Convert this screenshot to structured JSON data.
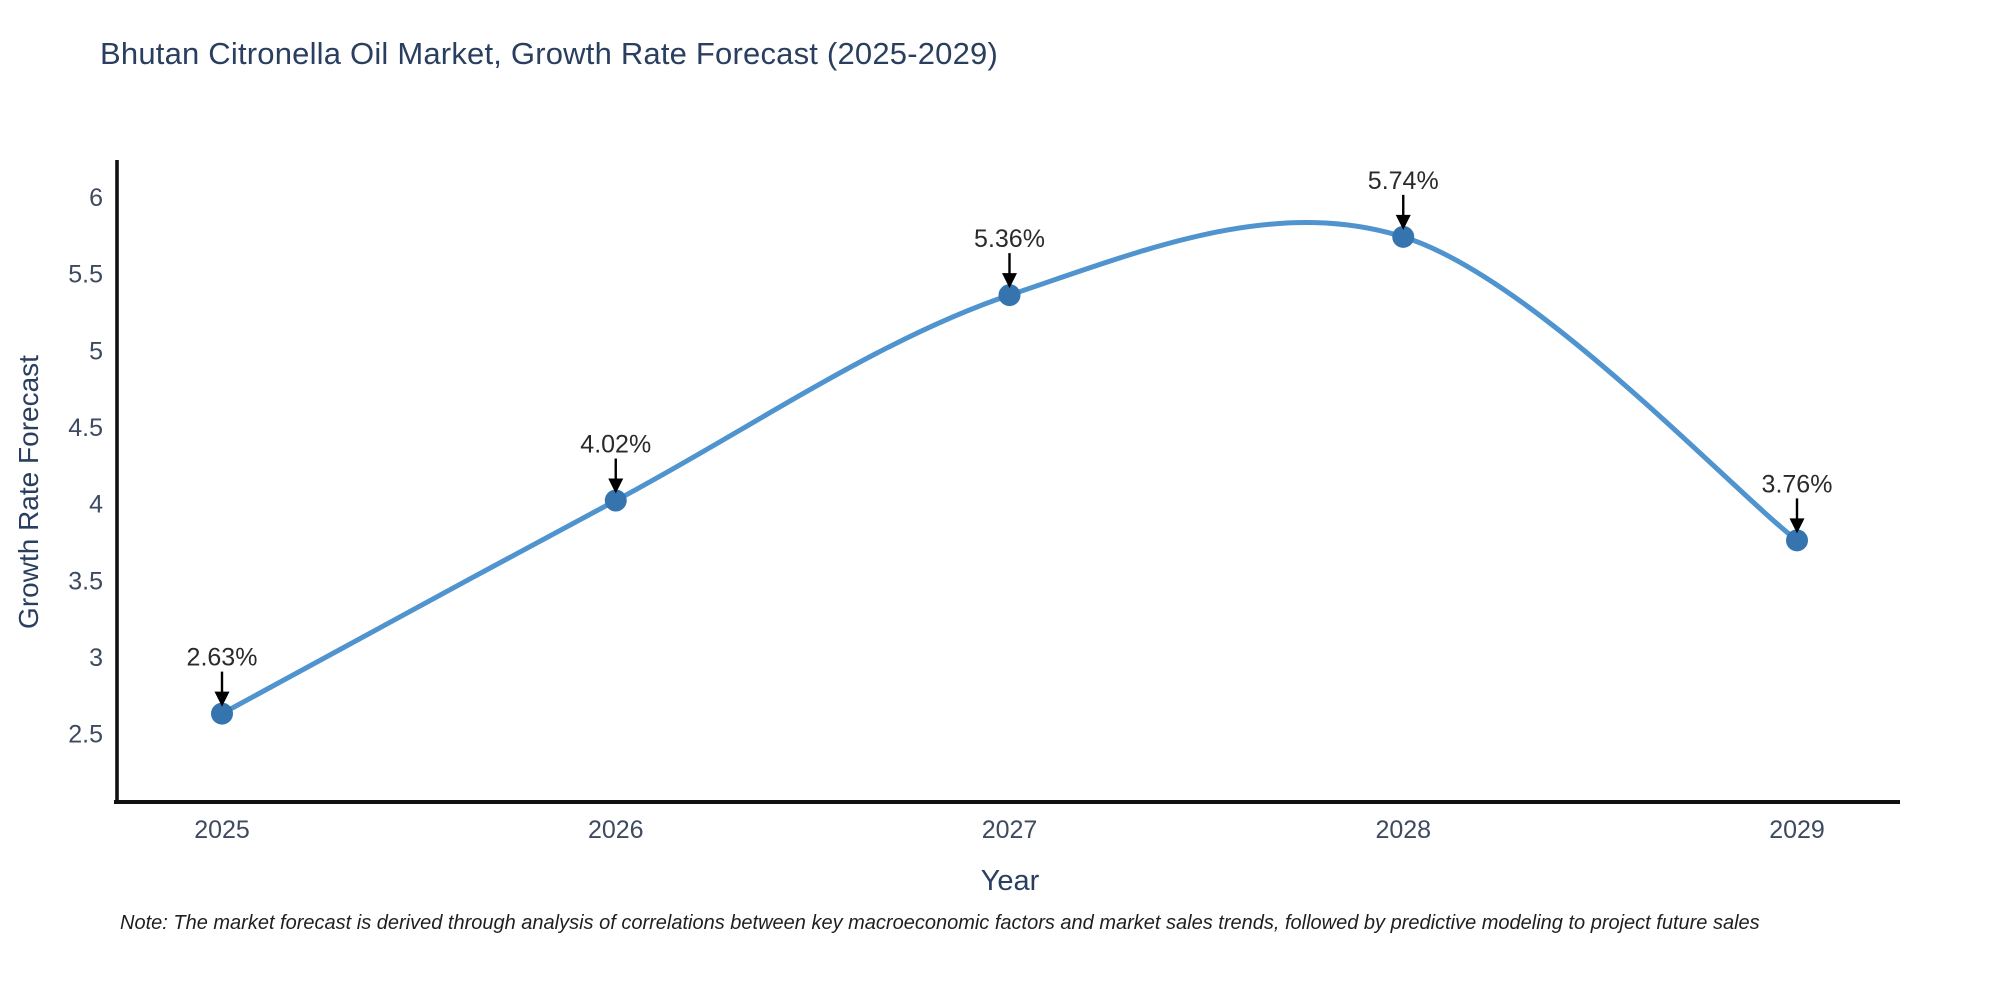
{
  "title": "Bhutan Citronella Oil Market, Growth Rate Forecast (2025-2029)",
  "note": "Note: The market forecast is derived through analysis of correlations between key macroeconomic factors and market sales trends, followed by predictive modeling to project future sales",
  "chart_data": {
    "type": "line",
    "title": "Bhutan Citronella Oil Market, Growth Rate Forecast (2025-2029)",
    "xlabel": "Year",
    "ylabel": "Growth Rate Forecast",
    "x": [
      2025,
      2026,
      2027,
      2028,
      2029
    ],
    "values": [
      2.63,
      4.02,
      5.36,
      5.74,
      3.76
    ],
    "point_labels": [
      "2.63%",
      "4.02%",
      "5.36%",
      "5.74%",
      "3.76%"
    ],
    "yticks": [
      2.5,
      3,
      3.5,
      4,
      4.5,
      5,
      5.5,
      6
    ],
    "ylim": [
      2.05,
      6.25
    ],
    "line_shape": "spline",
    "grid": false,
    "legend": "none",
    "colors": {
      "line": "#4f93cf",
      "marker": "#3674b0",
      "annotation_arrow": "#000000",
      "annotation_text": "#2a2a2a",
      "axis_line": "#111111",
      "tick_text": "#3d4a5f",
      "axis_title_text": "#2a3f5f",
      "title_text": "#2a3f5f",
      "background": "#ffffff"
    }
  }
}
